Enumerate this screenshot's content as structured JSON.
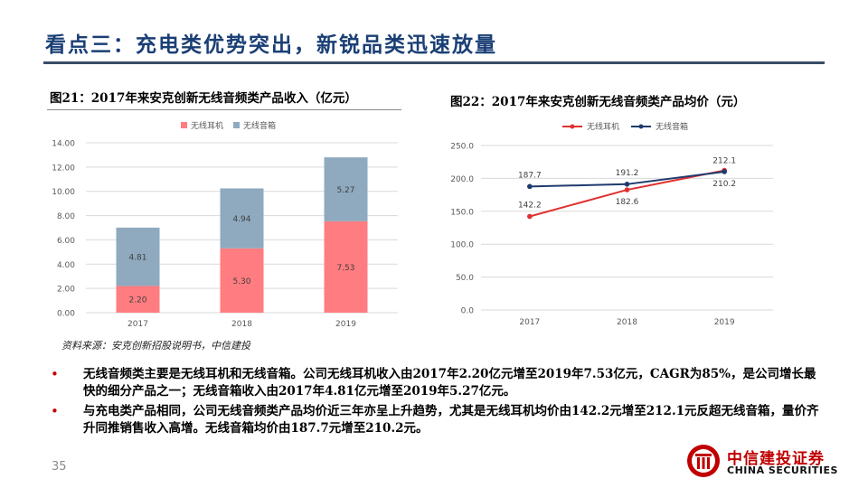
{
  "slide": {
    "title": "看点三：充电类优势突出，新锐品类迅速放量",
    "page_number": "35"
  },
  "chart_data": [
    {
      "type": "bar",
      "stacked": true,
      "title": "图21：2017年来安克创新无线音频类产品收入（亿元）",
      "categories": [
        "2017",
        "2018",
        "2019"
      ],
      "series": [
        {
          "name": "无线耳机",
          "values": [
            2.2,
            5.3,
            7.53
          ],
          "labels": [
            "2.20",
            "5.30",
            "7.53"
          ],
          "color": "#ff7c80"
        },
        {
          "name": "无线音箱",
          "values": [
            4.81,
            4.94,
            5.27
          ],
          "labels": [
            "4.81",
            "4.94",
            "5.27"
          ],
          "color": "#8faabf"
        }
      ],
      "ylim": [
        0,
        14
      ],
      "yticks": [
        "0.00",
        "2.00",
        "4.00",
        "6.00",
        "8.00",
        "10.00",
        "12.00",
        "14.00"
      ],
      "legend": "top-left",
      "grid": true
    },
    {
      "type": "line",
      "title": "图22：2017年来安克创新无线音频类产品均价（元）",
      "categories": [
        "2017",
        "2018",
        "2019"
      ],
      "series": [
        {
          "name": "无线耳机",
          "values": [
            142.2,
            182.6,
            212.1
          ],
          "labels": [
            "142.2",
            "182.6",
            "212.1"
          ],
          "color": "#e03030"
        },
        {
          "name": "无线音箱",
          "values": [
            187.7,
            191.2,
            210.2
          ],
          "labels": [
            "187.7",
            "191.2",
            "210.2"
          ],
          "color": "#1f3b6e"
        }
      ],
      "ylim": [
        0,
        250
      ],
      "yticks": [
        "0.0",
        "50.0",
        "100.0",
        "150.0",
        "200.0",
        "250.0"
      ],
      "legend": "top-left",
      "grid": true
    }
  ],
  "source_note": "资料来源：安克创新招股说明书，中信建投",
  "bullets": [
    {
      "text": "无线音频类主要是无线耳机和无线音箱。公司无线耳机收入由2017年2.20亿元增至2019年7.53亿元，CAGR为85%，是公司增长最快的细分产品之一；无线音箱收入由2017年4.81亿元增至2019年5.27亿元。"
    },
    {
      "text": "与充电类产品相同，公司无线音频类产品均价近三年亦呈上升趋势，尤其是无线耳机均价由142.2元增至212.1元反超无线音箱，量价齐升同推销售收入高增。无线音箱均价由187.7元增至210.2元。"
    }
  ],
  "bullet_marker": "•",
  "logo": {
    "name_cn": "中信建投证券",
    "name_en": "CHINA SECURITIES",
    "color": "#c00000"
  }
}
